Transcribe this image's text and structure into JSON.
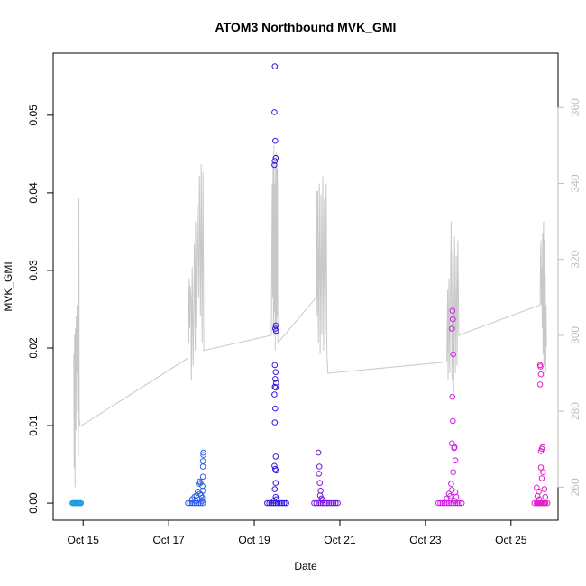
{
  "chart_data": {
    "type": "scatter",
    "title": "ATOM3 Northbound MVK_GMI",
    "xlabel": "Date",
    "ylabel": "MVK_GMI",
    "x_ticks": [
      "Oct 15",
      "Oct 17",
      "Oct 19",
      "Oct 21",
      "Oct 23",
      "Oct 25"
    ],
    "x_tick_days": [
      15,
      17,
      19,
      21,
      23,
      25
    ],
    "x_range_days": [
      14.3,
      26.1
    ],
    "y_left_range": [
      -0.0022,
      0.058
    ],
    "y_left_ticks": [
      "0.00",
      "0.01",
      "0.02",
      "0.03",
      "0.04",
      "0.05"
    ],
    "y_left_tick_values": [
      0,
      0.01,
      0.02,
      0.03,
      0.04,
      0.05
    ],
    "y_right_range": [
      251.3,
      374.3
    ],
    "y_right_ticks": [
      "260",
      "280",
      "300",
      "320",
      "340",
      "360"
    ],
    "y_right_tick_values": [
      260,
      280,
      300,
      320,
      340,
      360
    ],
    "grid": false,
    "legend": "none",
    "colors": {
      "line": "#c8c8c8",
      "right_axis": "#bdbdbd",
      "axis": "#000000"
    },
    "scatter_groups": [
      {
        "color": "#1a9ee6",
        "day_range": [
          14.75,
          14.95
        ],
        "points": [
          [
            14.75,
            0
          ],
          [
            14.77,
            0
          ],
          [
            14.79,
            0
          ],
          [
            14.81,
            0
          ],
          [
            14.83,
            0
          ],
          [
            14.85,
            0
          ],
          [
            14.87,
            0
          ],
          [
            14.89,
            0
          ],
          [
            14.91,
            0
          ],
          [
            14.93,
            0
          ],
          [
            14.95,
            0
          ]
        ]
      },
      {
        "color": "#2e5ee8",
        "day_range": [
          17.45,
          17.8
        ],
        "points": [
          [
            17.45,
            0
          ],
          [
            17.5,
            0
          ],
          [
            17.55,
            0
          ],
          [
            17.6,
            0
          ],
          [
            17.65,
            0
          ],
          [
            17.7,
            0
          ],
          [
            17.75,
            0
          ],
          [
            17.8,
            0
          ],
          [
            17.55,
            0.0005
          ],
          [
            17.6,
            0.0008
          ],
          [
            17.62,
            0.0003
          ],
          [
            17.65,
            0.001
          ],
          [
            17.68,
            0.0015
          ],
          [
            17.7,
            0.0025
          ],
          [
            17.72,
            0.0028
          ],
          [
            17.74,
            0.0026
          ],
          [
            17.73,
            0.0012
          ],
          [
            17.76,
            0.001
          ],
          [
            17.78,
            0.0007
          ],
          [
            17.8,
            0.0034
          ],
          [
            17.8,
            0.0047
          ],
          [
            17.8,
            0.0054
          ],
          [
            17.81,
            0.0062
          ],
          [
            17.81,
            0.0065
          ],
          [
            17.79,
            0.0022
          ],
          [
            17.8,
            0.0016
          ],
          [
            17.78,
            0.0003
          ]
        ]
      },
      {
        "color": "#3318e0",
        "day_range": [
          19.3,
          19.75
        ],
        "points": [
          [
            19.3,
            0
          ],
          [
            19.35,
            0
          ],
          [
            19.4,
            0
          ],
          [
            19.45,
            0
          ],
          [
            19.5,
            0
          ],
          [
            19.55,
            0
          ],
          [
            19.6,
            0
          ],
          [
            19.65,
            0
          ],
          [
            19.7,
            0
          ],
          [
            19.75,
            0
          ],
          [
            19.48,
            0.0563
          ],
          [
            19.47,
            0.0504
          ],
          [
            19.49,
            0.0467
          ],
          [
            19.5,
            0.0445
          ],
          [
            19.48,
            0.0441
          ],
          [
            19.47,
            0.0436
          ],
          [
            19.5,
            0.0229
          ],
          [
            19.49,
            0.0225
          ],
          [
            19.51,
            0.0222
          ],
          [
            19.48,
            0.0178
          ],
          [
            19.5,
            0.0169
          ],
          [
            19.49,
            0.016
          ],
          [
            19.51,
            0.0155
          ],
          [
            19.48,
            0.015
          ],
          [
            19.5,
            0.0149
          ],
          [
            19.47,
            0.014
          ],
          [
            19.49,
            0.0122
          ],
          [
            19.48,
            0.0104
          ],
          [
            19.5,
            0.006
          ],
          [
            19.47,
            0.0048
          ],
          [
            19.49,
            0.0044
          ],
          [
            19.51,
            0.0042
          ],
          [
            19.5,
            0.0026
          ],
          [
            19.48,
            0.0018
          ],
          [
            19.5,
            0.0008
          ],
          [
            19.52,
            0.0005
          ],
          [
            19.46,
            0.0003
          ]
        ]
      },
      {
        "color": "#7519e0",
        "day_range": [
          20.4,
          20.95
        ],
        "points": [
          [
            20.4,
            0
          ],
          [
            20.45,
            0
          ],
          [
            20.5,
            0
          ],
          [
            20.55,
            0
          ],
          [
            20.6,
            0
          ],
          [
            20.65,
            0
          ],
          [
            20.7,
            0
          ],
          [
            20.75,
            0
          ],
          [
            20.8,
            0
          ],
          [
            20.85,
            0
          ],
          [
            20.9,
            0
          ],
          [
            20.95,
            0
          ],
          [
            20.5,
            0.0065
          ],
          [
            20.52,
            0.0047
          ],
          [
            20.51,
            0.0038
          ],
          [
            20.53,
            0.0026
          ],
          [
            20.55,
            0.0016
          ],
          [
            20.54,
            0.001
          ],
          [
            20.57,
            0.0006
          ],
          [
            20.6,
            0.0004
          ]
        ]
      },
      {
        "color": "#d11ee6",
        "day_range": [
          23.3,
          23.85
        ],
        "points": [
          [
            23.3,
            0
          ],
          [
            23.35,
            0
          ],
          [
            23.4,
            0
          ],
          [
            23.45,
            0
          ],
          [
            23.5,
            0
          ],
          [
            23.55,
            0
          ],
          [
            23.6,
            0
          ],
          [
            23.65,
            0
          ],
          [
            23.7,
            0
          ],
          [
            23.75,
            0
          ],
          [
            23.8,
            0
          ],
          [
            23.85,
            0
          ],
          [
            23.63,
            0.0248
          ],
          [
            23.64,
            0.0237
          ],
          [
            23.62,
            0.0225
          ],
          [
            23.65,
            0.0192
          ],
          [
            23.63,
            0.0137
          ],
          [
            23.64,
            0.0106
          ],
          [
            23.62,
            0.0077
          ],
          [
            23.67,
            0.0071
          ],
          [
            23.68,
            0.0072
          ],
          [
            23.7,
            0.0055
          ],
          [
            23.65,
            0.004
          ],
          [
            23.6,
            0.0025
          ],
          [
            23.62,
            0.0017
          ],
          [
            23.55,
            0.0012
          ],
          [
            23.58,
            0.0009
          ],
          [
            23.5,
            0.0006
          ],
          [
            23.7,
            0.0014
          ],
          [
            23.72,
            0.0008
          ],
          [
            23.68,
            0.0003
          ]
        ]
      },
      {
        "color": "#e41cc8",
        "day_range": [
          25.55,
          25.85
        ],
        "points": [
          [
            25.55,
            0
          ],
          [
            25.6,
            0
          ],
          [
            25.62,
            0
          ],
          [
            25.65,
            0
          ],
          [
            25.68,
            0
          ],
          [
            25.7,
            0
          ],
          [
            25.72,
            0
          ],
          [
            25.75,
            0
          ],
          [
            25.78,
            0
          ],
          [
            25.8,
            0
          ],
          [
            25.85,
            0
          ],
          [
            25.68,
            0.0178
          ],
          [
            25.69,
            0.0176
          ],
          [
            25.7,
            0.0166
          ],
          [
            25.68,
            0.0153
          ],
          [
            25.7,
            0.0067
          ],
          [
            25.72,
            0.007
          ],
          [
            25.74,
            0.0072
          ],
          [
            25.7,
            0.0046
          ],
          [
            25.75,
            0.004
          ],
          [
            25.72,
            0.0032
          ],
          [
            25.6,
            0.002
          ],
          [
            25.65,
            0.0015
          ],
          [
            25.78,
            0.0018
          ],
          [
            25.62,
            0.0009
          ],
          [
            25.8,
            0.0008
          ],
          [
            25.66,
            0.0005
          ]
        ]
      }
    ],
    "line_series": {
      "color": "#c8c8c8",
      "axis": "right",
      "points": [
        [
          14.78,
          295
        ],
        [
          14.79,
          265
        ],
        [
          14.8,
          300
        ],
        [
          14.81,
          260
        ],
        [
          14.82,
          302
        ],
        [
          14.83,
          275
        ],
        [
          14.84,
          305
        ],
        [
          14.85,
          290
        ],
        [
          14.86,
          308
        ],
        [
          14.87,
          280
        ],
        [
          14.88,
          310
        ],
        [
          14.89,
          268
        ],
        [
          14.9,
          336
        ],
        [
          14.91,
          278
        ],
        [
          14.93,
          276
        ],
        [
          17.45,
          294
        ],
        [
          17.46,
          312
        ],
        [
          17.47,
          298
        ],
        [
          17.48,
          315
        ],
        [
          17.49,
          302
        ],
        [
          17.5,
          313
        ],
        [
          17.52,
          310
        ],
        [
          17.53,
          288
        ],
        [
          17.55,
          318
        ],
        [
          17.57,
          292
        ],
        [
          17.58,
          300
        ],
        [
          17.6,
          324
        ],
        [
          17.62,
          296
        ],
        [
          17.63,
          330
        ],
        [
          17.65,
          302
        ],
        [
          17.67,
          334
        ],
        [
          17.7,
          310
        ],
        [
          17.72,
          342
        ],
        [
          17.74,
          305
        ],
        [
          17.76,
          345
        ],
        [
          17.78,
          298
        ],
        [
          17.8,
          343
        ],
        [
          17.82,
          296
        ],
        [
          19.4,
          300
        ],
        [
          19.42,
          340
        ],
        [
          19.43,
          310
        ],
        [
          19.44,
          345
        ],
        [
          19.45,
          300
        ],
        [
          19.46,
          350
        ],
        [
          19.47,
          306
        ],
        [
          19.48,
          340
        ],
        [
          19.49,
          296
        ],
        [
          19.5,
          345
        ],
        [
          19.51,
          300
        ],
        [
          19.52,
          348
        ],
        [
          19.53,
          305
        ],
        [
          19.54,
          344
        ],
        [
          19.55,
          298
        ],
        [
          20.45,
          310
        ],
        [
          20.46,
          338
        ],
        [
          20.47,
          305
        ],
        [
          20.48,
          338
        ],
        [
          20.5,
          298
        ],
        [
          20.52,
          340
        ],
        [
          20.54,
          295
        ],
        [
          20.56,
          337
        ],
        [
          20.58,
          300
        ],
        [
          20.6,
          342
        ],
        [
          20.62,
          296
        ],
        [
          20.64,
          336
        ],
        [
          20.66,
          300
        ],
        [
          20.68,
          340
        ],
        [
          20.7,
          295
        ],
        [
          20.72,
          290
        ],
        [
          23.5,
          293
        ],
        [
          23.52,
          312
        ],
        [
          23.53,
          288
        ],
        [
          23.55,
          315
        ],
        [
          23.57,
          290
        ],
        [
          23.6,
          330
        ],
        [
          23.62,
          288
        ],
        [
          23.64,
          322
        ],
        [
          23.66,
          285
        ],
        [
          23.68,
          326
        ],
        [
          23.7,
          290
        ],
        [
          23.72,
          321
        ],
        [
          23.74,
          292
        ],
        [
          23.76,
          325
        ],
        [
          23.78,
          300
        ],
        [
          25.68,
          308
        ],
        [
          25.69,
          320
        ],
        [
          25.7,
          325
        ],
        [
          25.71,
          308
        ],
        [
          25.72,
          318
        ],
        [
          25.73,
          302
        ],
        [
          25.74,
          327
        ],
        [
          25.75,
          295
        ],
        [
          25.76,
          330
        ],
        [
          25.77,
          292
        ],
        [
          25.78,
          325
        ],
        [
          25.79,
          288
        ],
        [
          25.8,
          316
        ],
        [
          25.81,
          290
        ],
        [
          25.82,
          308
        ],
        [
          25.83,
          297
        ]
      ]
    }
  }
}
